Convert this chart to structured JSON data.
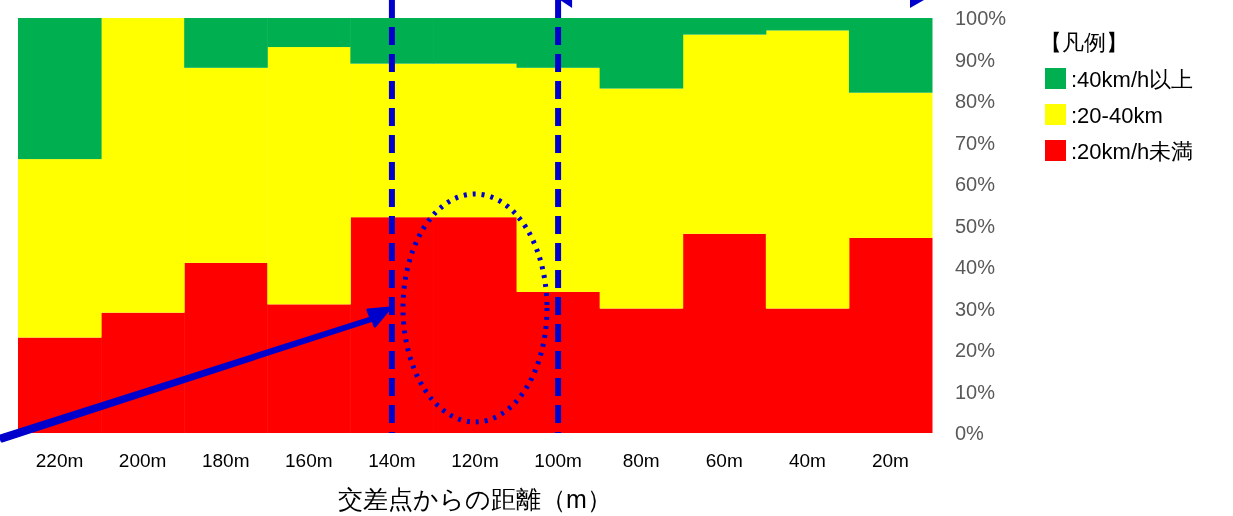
{
  "chart_data": {
    "type": "bar",
    "stacked": true,
    "xlabel": "交差点からの距離（m）",
    "legend_title": "【凡例】",
    "legend": "right",
    "categories": [
      "220m",
      "200m",
      "180m",
      "160m",
      "140m",
      "120m",
      "100m",
      "80m",
      "60m",
      "40m",
      "20m"
    ],
    "series": [
      {
        "name": ":20km/h未満",
        "color": "#ff0000",
        "values": [
          23,
          29,
          41,
          31,
          52,
          52,
          34,
          30,
          48,
          30,
          47
        ]
      },
      {
        "name": ":20-40km",
        "color": "#ffff00",
        "values": [
          43,
          71,
          47,
          62,
          37,
          37,
          54,
          53,
          48,
          67,
          35
        ]
      },
      {
        "name": ":40km/h以上",
        "color": "#00b050",
        "values": [
          34,
          0,
          12,
          7,
          11,
          11,
          12,
          17,
          4,
          3,
          18
        ]
      }
    ],
    "ylim": [
      0,
      100
    ],
    "yticks": [
      {
        "value": 0,
        "label": "0%"
      },
      {
        "value": 10,
        "label": "10%"
      },
      {
        "value": 20,
        "label": "20%"
      },
      {
        "value": 30,
        "label": "30%"
      },
      {
        "value": 40,
        "label": "40%"
      },
      {
        "value": 50,
        "label": "50%"
      },
      {
        "value": 60,
        "label": "60%"
      },
      {
        "value": 70,
        "label": "70%"
      },
      {
        "value": 80,
        "label": "80%"
      },
      {
        "value": 90,
        "label": "90%"
      },
      {
        "value": 100,
        "label": "100%"
      }
    ],
    "ref_lines": [
      {
        "axis": "x",
        "value": "140m",
        "color": "#0000cc",
        "line_style": "dashed"
      },
      {
        "axis": "x",
        "value": "100m",
        "color": "#0000cc",
        "line_style": "dashed"
      }
    ]
  }
}
